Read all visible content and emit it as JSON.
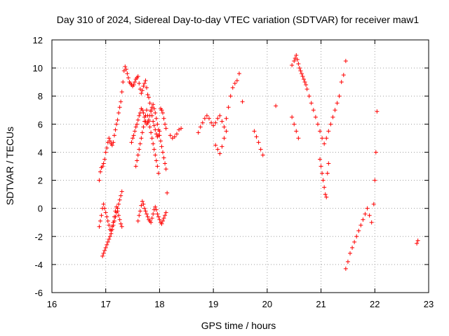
{
  "chart_data": {
    "type": "scatter",
    "title": "Day 310 of 2024, Sidereal Day-to-day VTEC variation (SDTVAR) for receiver maw1",
    "xlabel": "GPS time / hours",
    "ylabel": "SDTVAR / TECUs",
    "xlim": [
      16,
      23
    ],
    "ylim": [
      -6,
      12
    ],
    "xticks": [
      "16",
      "17",
      "18",
      "19",
      "20",
      "21",
      "22",
      "23"
    ],
    "yticks": [
      "-6",
      "-4",
      "-2",
      "0",
      "2",
      "4",
      "6",
      "8",
      "10",
      "12"
    ],
    "grid": true,
    "marker": "+",
    "color": "#ff0000",
    "series": [
      {
        "name": "SDTVAR",
        "x": [
          16.88,
          16.9,
          16.92,
          16.94,
          16.96,
          16.98,
          17.0,
          17.02,
          17.04,
          17.06,
          17.08,
          17.1,
          17.12,
          17.14,
          17.16,
          17.18,
          17.2,
          17.22,
          17.24,
          17.26,
          17.28,
          17.3,
          17.32,
          17.34,
          17.36,
          17.38,
          17.4,
          17.42,
          17.44,
          17.46,
          17.48,
          17.5,
          17.52,
          17.54,
          17.56,
          17.58,
          17.6,
          17.62,
          17.64,
          17.66,
          17.68,
          17.7,
          17.72,
          17.74,
          17.76,
          17.78,
          17.8,
          17.82,
          17.84,
          17.86,
          17.88,
          17.9,
          17.92,
          17.94,
          17.96,
          17.98,
          18.0,
          18.02,
          18.04,
          18.06,
          18.08,
          18.1,
          18.12,
          18.2,
          18.24,
          18.28,
          18.32,
          18.36,
          18.4,
          16.88,
          16.9,
          16.92,
          16.94,
          16.96,
          16.98,
          17.0,
          17.02,
          17.04,
          17.06,
          17.08,
          17.1,
          17.12,
          17.14,
          17.16,
          17.18,
          17.2,
          17.22,
          17.24,
          17.26,
          17.28,
          17.3,
          16.94,
          16.96,
          16.98,
          17.0,
          17.02,
          17.04,
          17.06,
          17.08,
          17.1,
          17.12,
          17.14,
          17.16,
          17.18,
          17.2,
          17.22,
          17.24,
          17.26,
          17.28,
          17.3,
          17.48,
          17.5,
          17.52,
          17.54,
          17.56,
          17.58,
          17.6,
          17.62,
          17.64,
          17.66,
          17.68,
          17.7,
          17.72,
          17.74,
          17.76,
          17.78,
          17.8,
          17.82,
          17.84,
          17.86,
          17.88,
          17.9,
          17.92,
          17.94,
          17.96,
          17.98,
          18.0,
          18.02,
          18.04,
          18.06,
          18.08,
          18.1,
          18.12,
          17.6,
          17.62,
          17.64,
          17.66,
          17.68,
          17.7,
          17.72,
          17.74,
          17.76,
          17.78,
          17.8,
          17.82,
          17.84,
          17.86,
          17.88,
          17.9,
          17.92,
          17.94,
          17.96,
          17.98,
          18.0,
          18.02,
          18.04,
          18.06,
          18.08,
          18.1,
          18.12,
          18.14,
          17.56,
          17.58,
          17.6,
          17.62,
          17.64,
          17.66,
          17.68,
          17.7,
          17.72,
          17.74,
          17.76,
          17.78,
          17.8,
          17.82,
          17.84,
          17.86,
          17.88,
          17.9,
          17.92,
          17.94,
          17.96,
          17.98,
          18.72,
          18.76,
          18.8,
          18.84,
          18.88,
          18.92,
          18.96,
          19.0,
          19.04,
          19.08,
          19.12,
          19.16,
          19.2,
          19.24,
          19.28,
          19.32,
          19.36,
          19.4,
          19.44,
          19.48,
          19.54,
          19.04,
          19.08,
          19.12,
          19.16,
          19.2,
          19.24,
          19.76,
          19.8,
          19.84,
          19.88,
          19.92,
          20.16,
          20.46,
          20.5,
          20.52,
          20.54,
          20.56,
          20.58,
          20.6,
          20.62,
          20.64,
          20.66,
          20.68,
          20.7,
          20.72,
          20.74,
          20.78,
          20.82,
          20.86,
          20.9,
          20.94,
          20.98,
          21.02,
          21.06,
          21.1,
          21.14,
          21.18,
          21.22,
          21.26,
          21.3,
          21.34,
          21.38,
          21.42,
          21.46,
          20.46,
          20.5,
          20.54,
          20.58,
          20.98,
          21.0,
          21.02,
          21.04,
          21.06,
          21.08,
          21.1,
          21.12,
          21.14,
          21.46,
          21.5,
          21.54,
          21.58,
          21.62,
          21.66,
          21.7,
          21.74,
          21.78,
          21.82,
          21.86,
          21.9,
          21.94,
          21.98,
          22.0,
          22.02,
          22.04,
          22.78,
          22.8
        ],
        "y": [
          2.0,
          2.6,
          2.9,
          3.0,
          3.2,
          3.5,
          4.0,
          4.3,
          4.7,
          5.0,
          4.8,
          4.6,
          4.5,
          4.7,
          5.2,
          5.6,
          6.0,
          6.3,
          6.8,
          7.2,
          7.6,
          8.3,
          9.0,
          9.8,
          10.1,
          9.9,
          9.6,
          9.3,
          9.0,
          8.9,
          8.8,
          8.7,
          8.8,
          9.0,
          9.2,
          9.3,
          9.4,
          8.9,
          8.5,
          8.2,
          8.4,
          8.7,
          8.9,
          9.1,
          8.6,
          8.1,
          7.9,
          7.5,
          7.0,
          6.6,
          6.2,
          5.9,
          5.6,
          5.3,
          5.1,
          5.2,
          5.5,
          7.1,
          7.0,
          6.8,
          6.4,
          6.0,
          5.7,
          5.2,
          5.0,
          5.1,
          5.3,
          5.6,
          5.7,
          -1.3,
          -0.9,
          -0.5,
          0.0,
          0.3,
          0.0,
          -0.3,
          -0.6,
          -0.9,
          -1.2,
          -1.5,
          -1.6,
          -1.3,
          -1.0,
          -0.6,
          -0.2,
          0.1,
          -0.2,
          -0.5,
          -0.8,
          -1.1,
          -1.3,
          -3.4,
          -3.2,
          -3.0,
          -2.8,
          -2.6,
          -2.4,
          -2.2,
          -2.0,
          -1.8,
          -1.5,
          -1.2,
          -0.9,
          -0.6,
          -0.3,
          0.0,
          0.3,
          0.6,
          0.9,
          1.2,
          4.7,
          5.0,
          5.2,
          5.5,
          5.8,
          6.0,
          6.3,
          6.6,
          6.8,
          7.1,
          7.0,
          6.8,
          6.5,
          6.2,
          6.0,
          6.1,
          6.3,
          6.6,
          6.9,
          7.2,
          7.4,
          7.1,
          6.8,
          6.4,
          6.0,
          5.6,
          5.2,
          4.8,
          4.4,
          4.0,
          3.6,
          3.2,
          2.8,
          -0.9,
          -0.5,
          -0.2,
          0.2,
          0.5,
          0.3,
          0.0,
          -0.2,
          -0.4,
          -0.6,
          -0.8,
          -0.9,
          -1.0,
          -0.7,
          -0.4,
          -0.1,
          0.1,
          -0.1,
          -0.4,
          -0.6,
          -0.8,
          -1.0,
          -1.1,
          -0.9,
          -0.7,
          -0.5,
          -0.3,
          1.1,
          3.0,
          3.4,
          3.8,
          4.2,
          4.6,
          5.0,
          5.4,
          5.8,
          6.2,
          6.6,
          7.0,
          6.6,
          6.2,
          5.8,
          5.4,
          5.0,
          4.6,
          4.2,
          3.8,
          3.4,
          3.0,
          2.5,
          5.4,
          5.8,
          6.1,
          6.4,
          6.6,
          6.4,
          6.1,
          5.9,
          6.1,
          6.4,
          6.6,
          6.2,
          5.8,
          6.4,
          7.2,
          8.0,
          8.6,
          8.9,
          9.1,
          9.6,
          7.6,
          4.5,
          4.2,
          3.9,
          4.4,
          5.0,
          5.5,
          5.5,
          5.1,
          4.7,
          4.2,
          3.8,
          7.3,
          10.2,
          10.5,
          10.7,
          10.9,
          10.6,
          10.3,
          10.0,
          9.8,
          9.6,
          9.4,
          9.2,
          9.0,
          8.8,
          8.5,
          8.0,
          7.5,
          7.0,
          6.5,
          6.0,
          5.5,
          5.0,
          4.6,
          5.0,
          5.5,
          6.0,
          6.5,
          7.0,
          7.5,
          8.0,
          9.0,
          9.5,
          10.5,
          6.5,
          6.0,
          5.5,
          5.0,
          3.5,
          3.0,
          2.5,
          2.0,
          1.5,
          1.0,
          0.8,
          2.5,
          3.2,
          -4.3,
          -3.8,
          -3.2,
          -2.8,
          -2.4,
          -2.0,
          -1.6,
          -1.2,
          -0.8,
          -0.4,
          0.0,
          -0.5,
          -1.0,
          0.3,
          2.0,
          4.0,
          6.9,
          -2.5,
          -2.3
        ]
      }
    ]
  }
}
